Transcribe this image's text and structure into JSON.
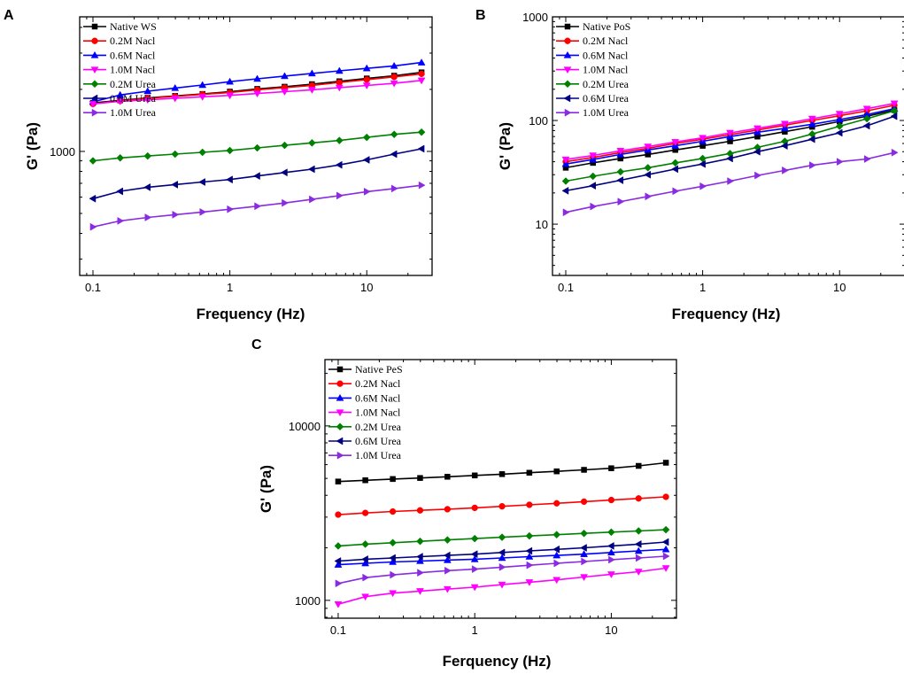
{
  "chart_data": [
    {
      "panel": "A",
      "type": "line",
      "xscale": "log",
      "yscale": "log",
      "xlabel": "Frequency (Hz)",
      "ylabel": "G' (Pa)",
      "xlim": [
        0.08,
        30
      ],
      "ylim": [
        250,
        4500
      ],
      "xticks": [
        {
          "v": 0.1,
          "label": "0.1"
        },
        {
          "v": 1,
          "label": "1"
        },
        {
          "v": 10,
          "label": "10"
        }
      ],
      "yticks": [
        {
          "v": 1000,
          "label": "1000"
        }
      ],
      "x": [
        0.1,
        0.158,
        0.251,
        0.398,
        0.631,
        1.0,
        1.585,
        2.512,
        3.981,
        6.31,
        10.0,
        15.85,
        25.12
      ],
      "series": [
        {
          "name": "Native WS",
          "color": "#000000",
          "marker": "square",
          "values": [
            1720,
            1770,
            1820,
            1860,
            1900,
            1950,
            2010,
            2060,
            2120,
            2190,
            2260,
            2330,
            2420
          ]
        },
        {
          "name": "0.2M Nacl",
          "color": "#ff0000",
          "marker": "circle",
          "values": [
            1700,
            1760,
            1810,
            1850,
            1890,
            1930,
            1990,
            2040,
            2090,
            2160,
            2230,
            2300,
            2380
          ]
        },
        {
          "name": "0.6M Nacl",
          "color": "#0000ff",
          "marker": "triangle-up",
          "values": [
            1740,
            1880,
            1960,
            2030,
            2100,
            2180,
            2250,
            2320,
            2390,
            2460,
            2530,
            2600,
            2700
          ]
        },
        {
          "name": "1.0M Nacl",
          "color": "#ff00ff",
          "marker": "triangle-down",
          "values": [
            1700,
            1750,
            1780,
            1810,
            1840,
            1870,
            1910,
            1950,
            1990,
            2040,
            2090,
            2140,
            2210
          ]
        },
        {
          "name": "0.2M Urea",
          "color": "#008000",
          "marker": "diamond",
          "values": [
            900,
            930,
            950,
            970,
            990,
            1010,
            1040,
            1070,
            1100,
            1130,
            1170,
            1210,
            1240
          ]
        },
        {
          "name": "0.6M Urea",
          "color": "#000080",
          "marker": "triangle-left",
          "values": [
            590,
            640,
            670,
            690,
            710,
            730,
            760,
            790,
            820,
            860,
            910,
            970,
            1030
          ]
        },
        {
          "name": "1.0M Urea",
          "color": "#8a2be2",
          "marker": "triangle-right",
          "values": [
            430,
            460,
            478,
            493,
            508,
            524,
            542,
            562,
            585,
            610,
            638,
            660,
            685
          ]
        }
      ]
    },
    {
      "panel": "B",
      "type": "line",
      "xscale": "log",
      "yscale": "log",
      "xlabel": "Frequency (Hz)",
      "ylabel": "G' (Pa)",
      "xlim": [
        0.08,
        30
      ],
      "ylim": [
        3.2,
        1000
      ],
      "xticks": [
        {
          "v": 0.1,
          "label": "0.1"
        },
        {
          "v": 1,
          "label": "1"
        },
        {
          "v": 10,
          "label": "10"
        }
      ],
      "yticks": [
        {
          "v": 10,
          "label": "10"
        },
        {
          "v": 100,
          "label": "100"
        },
        {
          "v": 1000,
          "label": "1000"
        }
      ],
      "x": [
        0.1,
        0.158,
        0.251,
        0.398,
        0.631,
        1.0,
        1.585,
        2.512,
        3.981,
        6.31,
        10.0,
        15.85,
        25.12
      ],
      "series": [
        {
          "name": "Native PoS",
          "color": "#000000",
          "marker": "square",
          "values": [
            35,
            39,
            43,
            47,
            52,
            57,
            63,
            70,
            78,
            87,
            98,
            110,
            126
          ]
        },
        {
          "name": "0.2M Nacl",
          "color": "#ff0000",
          "marker": "circle",
          "values": [
            40,
            44,
            49,
            54,
            60,
            66,
            73,
            81,
            90,
            100,
            111,
            124,
            140
          ]
        },
        {
          "name": "0.6M Nacl",
          "color": "#0000ff",
          "marker": "triangle-up",
          "values": [
            38,
            42,
            47,
            52,
            57,
            63,
            70,
            77,
            84,
            92,
            102,
            114,
            130
          ]
        },
        {
          "name": "1.0M Nacl",
          "color": "#ff00ff",
          "marker": "triangle-down",
          "values": [
            42,
            46,
            51,
            56,
            62,
            68,
            76,
            84,
            93,
            104,
            116,
            130,
            146
          ]
        },
        {
          "name": "0.2M Urea",
          "color": "#008000",
          "marker": "diamond",
          "values": [
            26,
            29,
            32,
            35,
            39,
            43,
            48,
            55,
            63,
            74,
            88,
            104,
            124
          ]
        },
        {
          "name": "0.6M Urea",
          "color": "#000080",
          "marker": "triangle-left",
          "values": [
            21,
            23.5,
            26.5,
            30,
            34,
            38,
            43,
            50,
            57,
            66,
            76,
            89,
            110
          ]
        },
        {
          "name": "1.0M Urea",
          "color": "#8a2be2",
          "marker": "triangle-right",
          "values": [
            13,
            14.8,
            16.5,
            18.5,
            20.8,
            23.2,
            26,
            29.5,
            33,
            37,
            40,
            42.5,
            49
          ]
        }
      ]
    },
    {
      "panel": "C",
      "type": "line",
      "xscale": "log",
      "yscale": "log",
      "xlabel": "Ferquency (Hz)",
      "ylabel": "G' (Pa)",
      "xlim": [
        0.08,
        30
      ],
      "ylim": [
        790,
        24000
      ],
      "xticks": [
        {
          "v": 0.1,
          "label": "0.1"
        },
        {
          "v": 1,
          "label": "1"
        },
        {
          "v": 10,
          "label": "10"
        }
      ],
      "yticks": [
        {
          "v": 1000,
          "label": "1000"
        },
        {
          "v": 10000,
          "label": "10000"
        }
      ],
      "x": [
        0.1,
        0.158,
        0.251,
        0.398,
        0.631,
        1.0,
        1.585,
        2.512,
        3.981,
        6.31,
        10.0,
        15.85,
        25.12
      ],
      "series": [
        {
          "name": "Native PeS",
          "color": "#000000",
          "marker": "square",
          "values": [
            4800,
            4880,
            4960,
            5030,
            5110,
            5200,
            5290,
            5390,
            5490,
            5600,
            5720,
            5900,
            6150
          ]
        },
        {
          "name": "0.2M Nacl",
          "color": "#ff0000",
          "marker": "circle",
          "values": [
            3100,
            3170,
            3230,
            3280,
            3330,
            3390,
            3460,
            3530,
            3600,
            3680,
            3760,
            3840,
            3920
          ]
        },
        {
          "name": "0.6M Nacl",
          "color": "#0000ff",
          "marker": "triangle-up",
          "values": [
            1600,
            1630,
            1660,
            1680,
            1700,
            1720,
            1750,
            1780,
            1810,
            1840,
            1880,
            1920,
            1960
          ]
        },
        {
          "name": "1.0M Nacl",
          "color": "#ff00ff",
          "marker": "triangle-down",
          "values": [
            950,
            1050,
            1100,
            1130,
            1160,
            1190,
            1230,
            1270,
            1310,
            1360,
            1410,
            1460,
            1530
          ]
        },
        {
          "name": "0.2M Urea",
          "color": "#008000",
          "marker": "diamond",
          "values": [
            2050,
            2100,
            2140,
            2180,
            2220,
            2260,
            2300,
            2340,
            2380,
            2420,
            2460,
            2500,
            2540
          ]
        },
        {
          "name": "0.6M Urea",
          "color": "#000080",
          "marker": "triangle-left",
          "values": [
            1680,
            1720,
            1750,
            1780,
            1810,
            1840,
            1880,
            1920,
            1960,
            2000,
            2050,
            2100,
            2160
          ]
        },
        {
          "name": "1.0M Urea",
          "color": "#8a2be2",
          "marker": "triangle-right",
          "values": [
            1250,
            1350,
            1400,
            1440,
            1480,
            1510,
            1550,
            1590,
            1630,
            1670,
            1710,
            1750,
            1790
          ]
        }
      ]
    }
  ]
}
